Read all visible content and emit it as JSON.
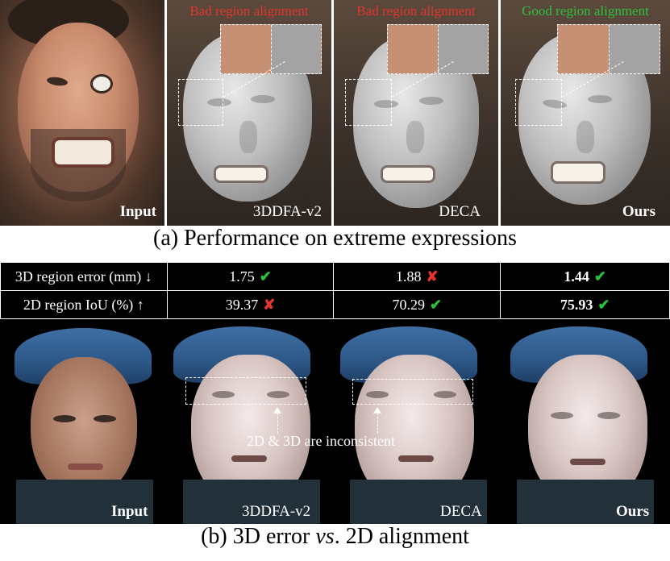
{
  "panel_a": {
    "tiles": [
      {
        "title": "",
        "label": "Input",
        "bold": true
      },
      {
        "title": "Bad region alignment",
        "label": "3DDFA-v2",
        "bold": false
      },
      {
        "title": "Bad region alignment",
        "label": "DECA",
        "bold": false
      },
      {
        "title": "Good region alignment",
        "label": "Ours",
        "bold": true
      }
    ],
    "caption": "(a) Performance on extreme expressions",
    "colors": {
      "bad": "#e3342f",
      "good": "#2fbf3f"
    }
  },
  "panel_b": {
    "table": {
      "rows": [
        {
          "label": "3D region error (mm) ↓",
          "cells": [
            {
              "value": "1.75",
              "mark": "✔",
              "status": "good",
              "bold": false
            },
            {
              "value": "1.88",
              "mark": "✘",
              "status": "bad",
              "bold": false
            },
            {
              "value": "1.44",
              "mark": "✔",
              "status": "good",
              "bold": true
            }
          ]
        },
        {
          "label": "2D region IoU (%) ↑",
          "cells": [
            {
              "value": "39.37",
              "mark": "✘",
              "status": "bad",
              "bold": false
            },
            {
              "value": "70.29",
              "mark": "✔",
              "status": "good",
              "bold": false
            },
            {
              "value": "75.93",
              "mark": "✔",
              "status": "good",
              "bold": true
            }
          ]
        }
      ]
    },
    "annotation": "2D & 3D are inconsistent",
    "tile_labels": [
      "Input",
      "3DDFA-v2",
      "DECA",
      "Ours"
    ],
    "caption_prefix": "(b) 3D error ",
    "caption_italic": "vs",
    "caption_suffix": ". 2D alignment"
  }
}
